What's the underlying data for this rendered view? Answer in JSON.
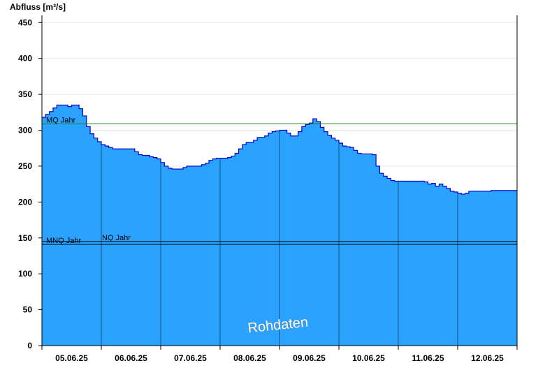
{
  "chart_data": {
    "type": "area",
    "ylabel": "Abfluss [m³/s]",
    "ylim": [
      0,
      460
    ],
    "yticks": [
      0,
      50,
      100,
      150,
      200,
      250,
      300,
      350,
      400,
      450
    ],
    "grid": true,
    "days": [
      "05.06.25",
      "06.06.25",
      "07.06.25",
      "08.06.25",
      "09.06.25",
      "10.06.25",
      "11.06.25",
      "12.06.25"
    ],
    "series": [
      {
        "values_by_day": [
          [
            318,
            322,
            326,
            331,
            335,
            335,
            335,
            333,
            335,
            335,
            330,
            320,
            305,
            295,
            289,
            284
          ],
          [
            280,
            278,
            276,
            274,
            274,
            274,
            274,
            274,
            274,
            270,
            266,
            265,
            265,
            263,
            262,
            260
          ],
          [
            255,
            250,
            247,
            246,
            246,
            246,
            248,
            250,
            250,
            250,
            250,
            252,
            254,
            258,
            260,
            261
          ],
          [
            261,
            261,
            262,
            264,
            268,
            274,
            280,
            283,
            283,
            286,
            290,
            290,
            292,
            296,
            298,
            299
          ],
          [
            300,
            300,
            296,
            292,
            292,
            298,
            305,
            308,
            310,
            316,
            312,
            304,
            298,
            293,
            289,
            286
          ],
          [
            282,
            278,
            277,
            276,
            272,
            268,
            267,
            267,
            267,
            266,
            250,
            240,
            236,
            233,
            230,
            229
          ],
          [
            229,
            229,
            229,
            229,
            229,
            229,
            229,
            228,
            225,
            226,
            222,
            225,
            222,
            219,
            215,
            214
          ],
          [
            212,
            211,
            212,
            215,
            215,
            215,
            215,
            215,
            215,
            216,
            216,
            216,
            216,
            216,
            216,
            216
          ]
        ]
      }
    ],
    "reference_lines": [
      {
        "label": "MQ Jahr",
        "value": 309,
        "color": "#1a8a1a"
      },
      {
        "label": "MNQ Jahr",
        "value": 141,
        "color": "#000000"
      },
      {
        "label": "NQ Jahr",
        "value": 145,
        "color": "#000000"
      }
    ],
    "fill_color": "#29a3ff",
    "line_color": "#0000cc",
    "watermark": "Rohdaten"
  }
}
